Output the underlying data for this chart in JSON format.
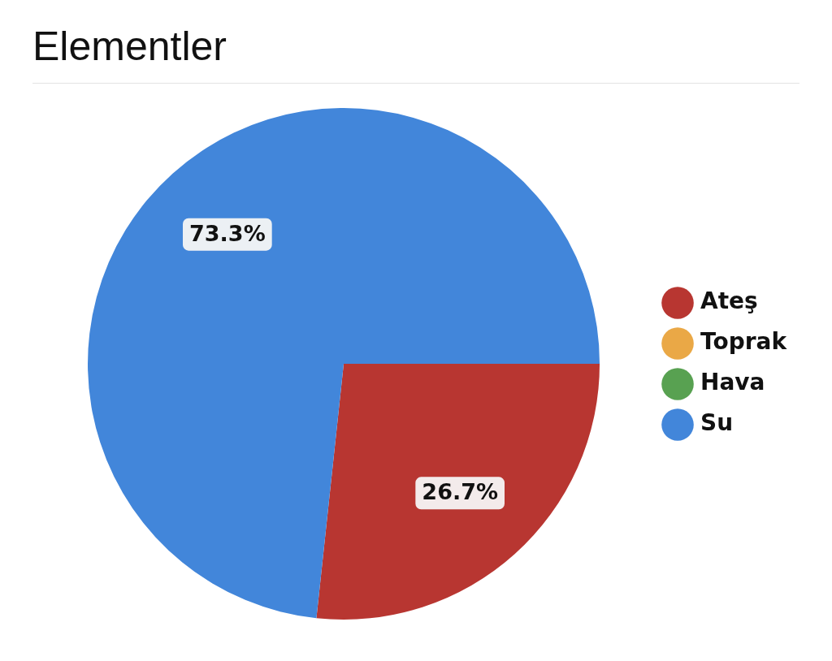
{
  "chart_data": {
    "type": "pie",
    "title": "Elementler",
    "categories": [
      "Ateş",
      "Toprak",
      "Hava",
      "Su"
    ],
    "values": [
      26.7,
      0,
      0,
      73.3
    ],
    "colors": [
      "#b83631",
      "#eaa846",
      "#58a151",
      "#4286da"
    ],
    "value_labels": [
      "26.7%",
      null,
      null,
      "73.3%"
    ],
    "legend": "right"
  }
}
